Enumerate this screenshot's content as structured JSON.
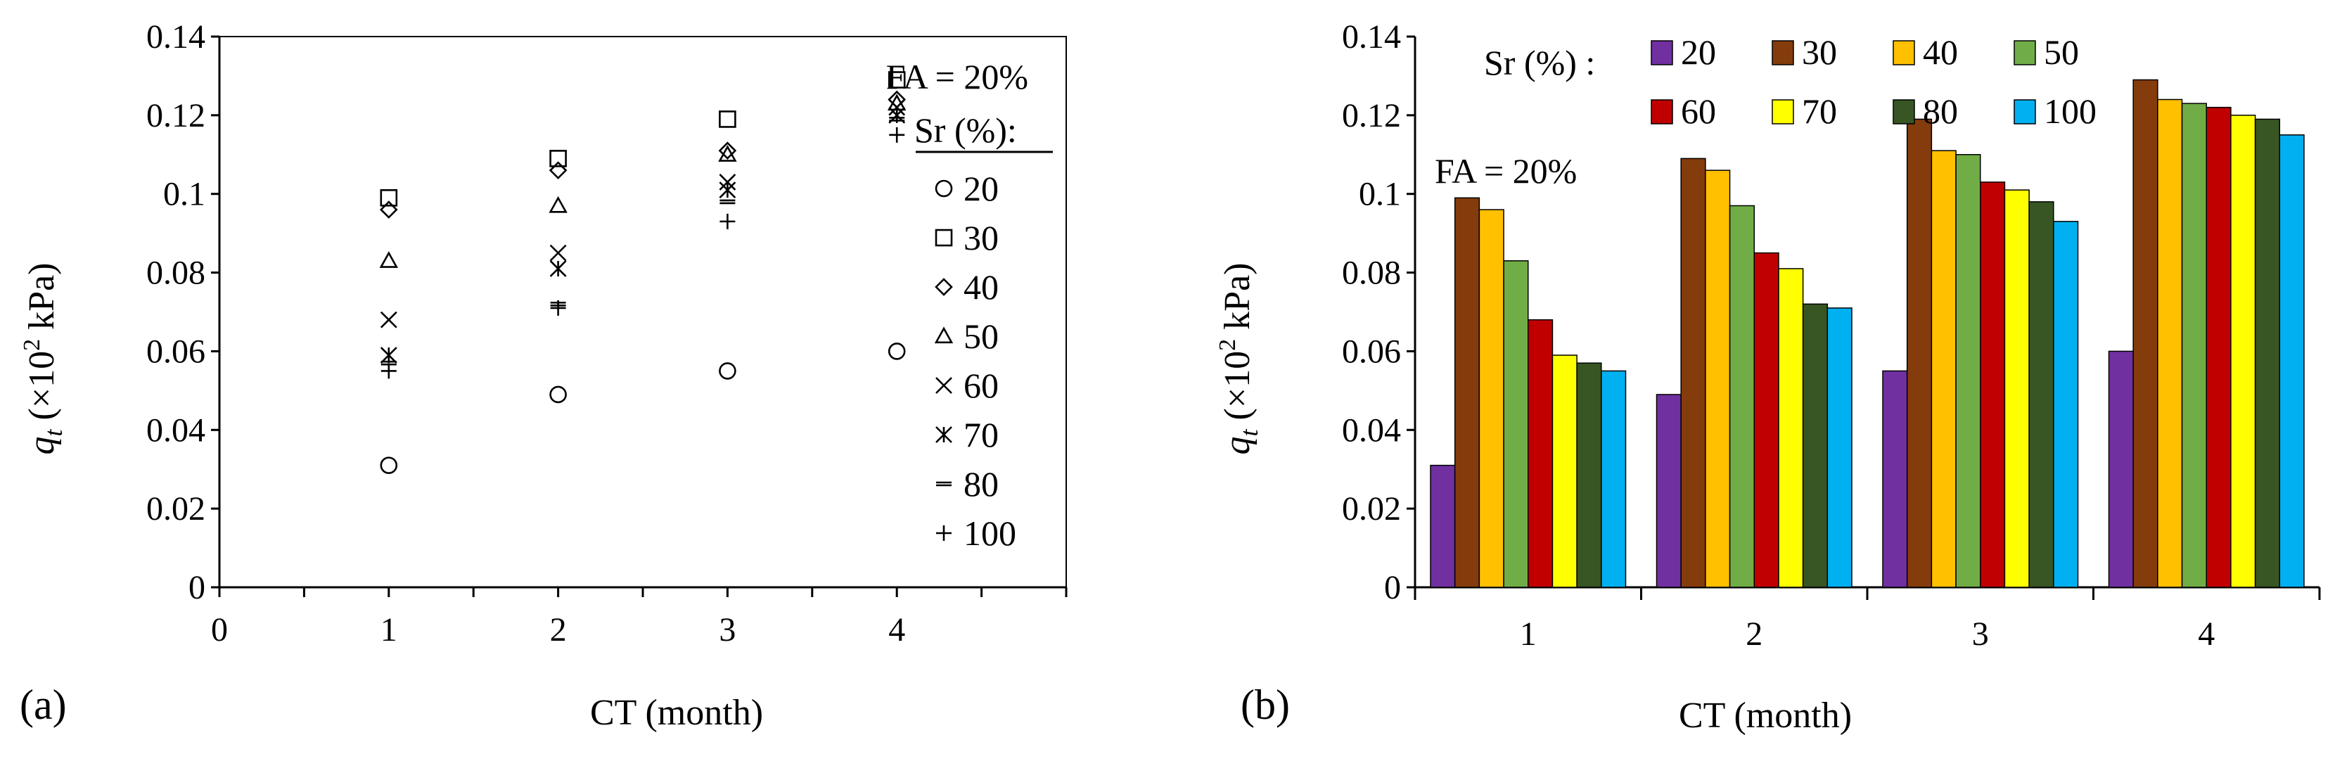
{
  "chart_data": [
    {
      "type": "scatter",
      "panel_label": "(a)",
      "annotation": "FA = 20%",
      "legend_title": "Sr (%):",
      "xlabel": "CT (month)",
      "ylabel_main": "q",
      "ylabel_sub": "t",
      "ylabel_unit_pre": " (×10",
      "ylabel_unit_sup": "2",
      "ylabel_unit_post": " kPa)",
      "xlim": [
        0,
        5
      ],
      "ylim": [
        0,
        0.14
      ],
      "xticks": [
        "0",
        "1",
        "2",
        "3",
        "4"
      ],
      "yticks": [
        "0",
        "0.02",
        "0.04",
        "0.06",
        "0.08",
        "0.1",
        "0.12",
        "0.14"
      ],
      "x": [
        1,
        2,
        3,
        4
      ],
      "series": [
        {
          "name": "20",
          "marker": "circle",
          "values": [
            0.031,
            0.049,
            0.055,
            0.06
          ]
        },
        {
          "name": "30",
          "marker": "square",
          "values": [
            0.099,
            0.109,
            0.119,
            0.129
          ]
        },
        {
          "name": "40",
          "marker": "diamond",
          "values": [
            0.096,
            0.106,
            0.111,
            0.124
          ]
        },
        {
          "name": "50",
          "marker": "triangle",
          "values": [
            0.083,
            0.097,
            0.11,
            0.123
          ]
        },
        {
          "name": "60",
          "marker": "x",
          "values": [
            0.068,
            0.085,
            0.103,
            0.122
          ]
        },
        {
          "name": "70",
          "marker": "asterisk",
          "values": [
            0.059,
            0.081,
            0.101,
            0.12
          ]
        },
        {
          "name": "80",
          "marker": "dash",
          "values": [
            0.057,
            0.072,
            0.098,
            0.119
          ]
        },
        {
          "name": "100",
          "marker": "plus",
          "values": [
            0.055,
            0.071,
            0.093,
            0.115
          ]
        }
      ]
    },
    {
      "type": "bar",
      "panel_label": "(b)",
      "annotation": "FA = 20%",
      "legend_title": "Sr (%) :",
      "xlabel": "CT (month)",
      "ylabel_main": "q",
      "ylabel_sub": "t",
      "ylabel_unit_pre": " (×10",
      "ylabel_unit_sup": "2",
      "ylabel_unit_post": " kPa)",
      "ylim": [
        0,
        0.14
      ],
      "yticks": [
        "0",
        "0.02",
        "0.04",
        "0.06",
        "0.08",
        "0.1",
        "0.12",
        "0.14"
      ],
      "categories": [
        "1",
        "2",
        "3",
        "4"
      ],
      "series": [
        {
          "name": "20",
          "color": "#7030a0",
          "values": [
            0.031,
            0.049,
            0.055,
            0.06
          ]
        },
        {
          "name": "30",
          "color": "#843c0c",
          "values": [
            0.099,
            0.109,
            0.119,
            0.129
          ]
        },
        {
          "name": "40",
          "color": "#ffc000",
          "values": [
            0.096,
            0.106,
            0.111,
            0.124
          ]
        },
        {
          "name": "50",
          "color": "#70ad47",
          "values": [
            0.083,
            0.097,
            0.11,
            0.123
          ]
        },
        {
          "name": "60",
          "color": "#c00000",
          "values": [
            0.068,
            0.085,
            0.103,
            0.122
          ]
        },
        {
          "name": "70",
          "color": "#ffff00",
          "values": [
            0.059,
            0.081,
            0.101,
            0.12
          ]
        },
        {
          "name": "80",
          "color": "#375623",
          "values": [
            0.057,
            0.072,
            0.098,
            0.119
          ]
        },
        {
          "name": "100",
          "color": "#00b0f0",
          "values": [
            0.055,
            0.071,
            0.093,
            0.115
          ]
        }
      ]
    }
  ]
}
